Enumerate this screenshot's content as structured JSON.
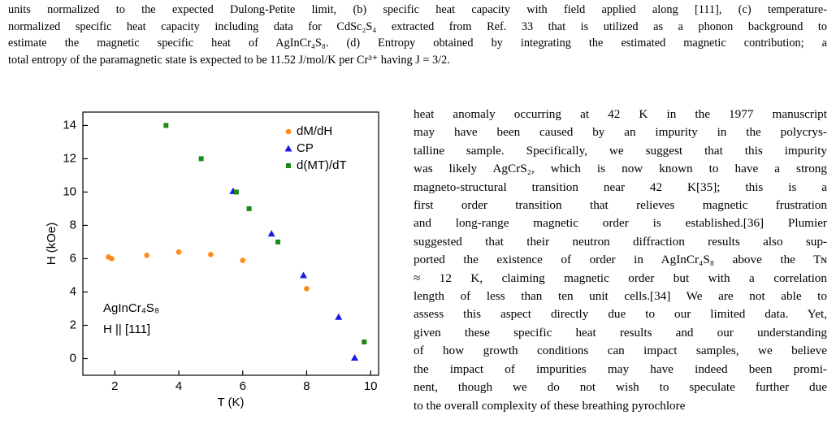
{
  "caption": [
    "units normalized to the expected Dulong-Petite limit, (b) specific heat capacity with field applied along [111], (c) temperature-",
    "normalized specific heat capacity including data for CdSc₂S₄ extracted from Ref. 33 that is utilized as a phonon background to",
    "estimate the magnetic specific heat of AgInCr₄S₈. (d) Entropy obtained by integrating the estimated magnetic contribution; a",
    "total entropy of the paramagnetic state is expected to be 11.52 J/mol/K per Cr³⁺ having J = 3/2."
  ],
  "body": [
    "heat anomaly occurring at 42 K in the 1977 manuscript",
    "may have been caused by an impurity in the polycrys-",
    "talline sample. Specifically, we suggest that this impurity",
    "was likely AgCrS₂, which is now known to have a strong",
    "magneto-structural transition near 42 K[35]; this is a",
    "first order transition that relieves magnetic frustration",
    "and long-range magnetic order is established.[36] Plumier",
    "suggested that their neutron diffraction results also sup-",
    "ported the existence of order in AgInCr₄S₈ above the Tɴ",
    "≈ 12 K, claiming magnetic order but with a correlation",
    "length of less than ten unit cells.[34] We are not able to",
    "assess this aspect directly due to our limited data. Yet,",
    "given these specific heat results and our understanding",
    "of how growth conditions can impact samples, we believe",
    "the impact of impurities may have indeed been promi-",
    "nent, though we do not wish to speculate further due",
    "to the overall complexity of these breathing pyrochlore"
  ],
  "chart_data": {
    "type": "scatter",
    "x_label": "T (K)",
    "y_label": "H (kOe)",
    "annotations": [
      "AgInCr₄S₈",
      "H || [111]"
    ],
    "xlim": [
      1,
      10.25
    ],
    "ylim": [
      -1,
      14.8
    ],
    "xticks": [
      2,
      4,
      6,
      8,
      10
    ],
    "yticks": [
      0,
      2,
      4,
      6,
      8,
      10,
      12,
      14
    ],
    "series": [
      {
        "name": "dM/dH",
        "color": "#ff8a1c",
        "marker": "circle",
        "x": [
          1.8,
          1.9,
          3,
          4,
          5,
          6,
          8
        ],
        "values": [
          6.1,
          6.0,
          6.2,
          6.4,
          6.25,
          5.9,
          4.2
        ]
      },
      {
        "name": "CP",
        "color": "#1a1ae6",
        "marker": "triangle",
        "x": [
          5.7,
          6.9,
          7.9,
          9,
          9.5
        ],
        "values": [
          10.05,
          7.5,
          5.0,
          2.5,
          0.05
        ]
      },
      {
        "name": "d(MT)/dT",
        "color": "#178a17",
        "marker": "square",
        "x": [
          3.6,
          4.7,
          5.8,
          6.2,
          7.1,
          9.8
        ],
        "values": [
          14,
          12,
          10,
          9,
          7,
          1
        ]
      }
    ]
  }
}
